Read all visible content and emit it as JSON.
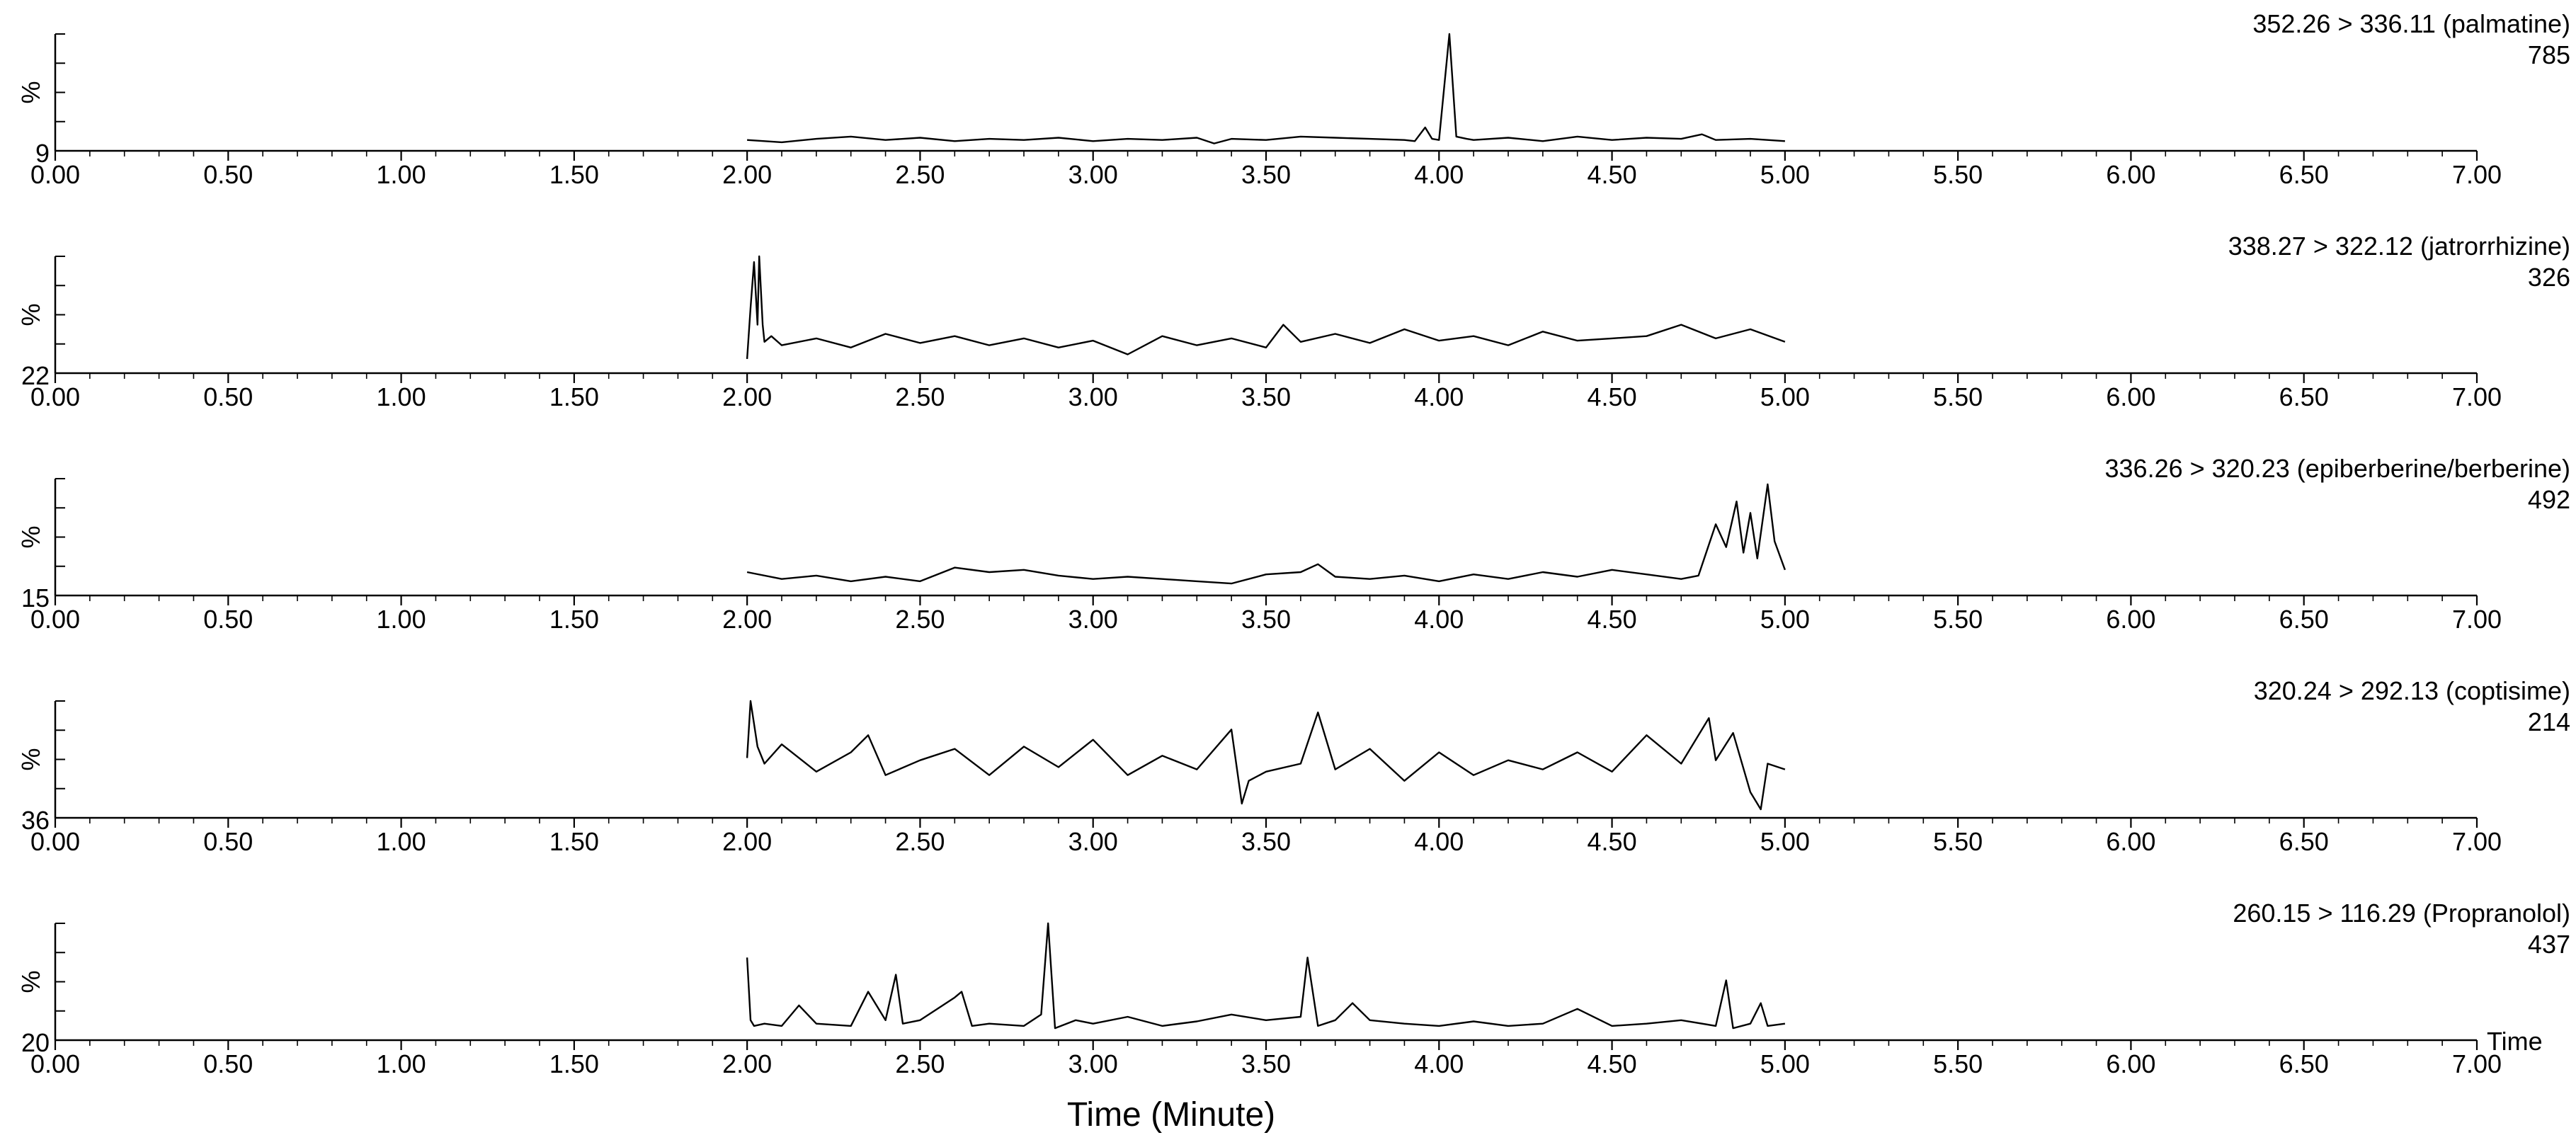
{
  "chart_data": {
    "type": "line",
    "xlabel": "Time (Minute)",
    "time_label": "Time",
    "x_range": [
      0,
      7
    ],
    "x_ticks": [
      "0.00",
      "0.50",
      "1.00",
      "1.50",
      "2.00",
      "2.50",
      "3.00",
      "3.50",
      "4.00",
      "4.50",
      "5.00",
      "5.50",
      "6.00",
      "6.50",
      "7.00"
    ],
    "y_axis_label": "%",
    "colors": {
      "line": "#000000",
      "axis": "#000000",
      "background": "#ffffff"
    },
    "panels": [
      {
        "transition": "352.26 > 336.11 (palmatine)",
        "max_intensity": "785",
        "baseline": "9",
        "x": [
          2.0,
          2.05,
          2.1,
          2.2,
          2.3,
          2.4,
          2.5,
          2.6,
          2.7,
          2.8,
          2.9,
          3.0,
          3.1,
          3.2,
          3.3,
          3.35,
          3.4,
          3.5,
          3.6,
          3.7,
          3.8,
          3.9,
          3.93,
          3.96,
          3.98,
          4.0,
          4.03,
          4.05,
          4.08,
          4.1,
          4.2,
          4.3,
          4.4,
          4.5,
          4.6,
          4.7,
          4.76,
          4.8,
          4.9,
          5.0
        ],
        "y": [
          7,
          6,
          5,
          8,
          10,
          7,
          9,
          6,
          8,
          7,
          9,
          6,
          8,
          7,
          9,
          4,
          8,
          7,
          10,
          9,
          8,
          7,
          6,
          18,
          8,
          7,
          100,
          10,
          8,
          7,
          9,
          6,
          10,
          7,
          9,
          8,
          12,
          7,
          8,
          6
        ]
      },
      {
        "transition": "338.27 > 322.12 (jatrorrhizine)",
        "max_intensity": "326",
        "baseline": "22",
        "x": [
          2.0,
          2.01,
          2.02,
          2.03,
          2.035,
          2.045,
          2.05,
          2.07,
          2.1,
          2.2,
          2.3,
          2.4,
          2.5,
          2.6,
          2.7,
          2.8,
          2.9,
          3.0,
          3.1,
          3.2,
          3.3,
          3.4,
          3.5,
          3.55,
          3.6,
          3.7,
          3.8,
          3.9,
          4.0,
          4.1,
          4.2,
          4.3,
          4.4,
          4.5,
          4.6,
          4.7,
          4.8,
          4.9,
          5.0
        ],
        "y": [
          10,
          55,
          95,
          40,
          100,
          40,
          25,
          30,
          22,
          28,
          20,
          32,
          24,
          30,
          22,
          28,
          20,
          26,
          14,
          30,
          22,
          28,
          20,
          40,
          25,
          32,
          24,
          36,
          26,
          30,
          22,
          34,
          26,
          28,
          30,
          40,
          28,
          36,
          25
        ]
      },
      {
        "transition": "336.26 > 320.23 (epiberberine/berberine)",
        "max_intensity": "492",
        "baseline": "15",
        "x": [
          2.0,
          2.1,
          2.2,
          2.3,
          2.4,
          2.5,
          2.6,
          2.7,
          2.8,
          2.9,
          3.0,
          3.1,
          3.2,
          3.3,
          3.4,
          3.5,
          3.6,
          3.65,
          3.7,
          3.8,
          3.9,
          4.0,
          4.1,
          4.2,
          4.3,
          4.4,
          4.5,
          4.6,
          4.7,
          4.75,
          4.8,
          4.83,
          4.86,
          4.88,
          4.9,
          4.92,
          4.95,
          4.97,
          5.0
        ],
        "y": [
          18,
          12,
          15,
          10,
          14,
          10,
          22,
          18,
          20,
          15,
          12,
          14,
          12,
          10,
          8,
          16,
          18,
          25,
          14,
          12,
          15,
          10,
          16,
          12,
          18,
          14,
          20,
          16,
          12,
          15,
          60,
          40,
          80,
          35,
          70,
          30,
          95,
          45,
          20
        ]
      },
      {
        "transition": "320.24 > 292.13 (coptisime)",
        "max_intensity": "214",
        "baseline": "36",
        "x": [
          2.0,
          2.01,
          2.03,
          2.05,
          2.1,
          2.2,
          2.3,
          2.35,
          2.4,
          2.5,
          2.6,
          2.7,
          2.8,
          2.9,
          3.0,
          3.1,
          3.2,
          3.3,
          3.4,
          3.43,
          3.45,
          3.5,
          3.6,
          3.65,
          3.7,
          3.8,
          3.9,
          4.0,
          4.1,
          4.2,
          4.3,
          4.4,
          4.5,
          4.6,
          4.7,
          4.78,
          4.8,
          4.85,
          4.9,
          4.93,
          4.95,
          5.0
        ],
        "y": [
          50,
          100,
          60,
          45,
          62,
          38,
          55,
          70,
          35,
          48,
          58,
          35,
          60,
          42,
          66,
          35,
          52,
          40,
          75,
          10,
          30,
          38,
          45,
          90,
          40,
          58,
          30,
          55,
          35,
          48,
          40,
          55,
          38,
          70,
          45,
          85,
          48,
          72,
          20,
          5,
          45,
          40
        ]
      },
      {
        "transition": "260.15 > 116.29 (Propranolol)",
        "max_intensity": "437",
        "baseline": "20",
        "x": [
          2.0,
          2.01,
          2.02,
          2.05,
          2.1,
          2.15,
          2.2,
          2.3,
          2.35,
          2.4,
          2.43,
          2.45,
          2.5,
          2.55,
          2.6,
          2.62,
          2.65,
          2.7,
          2.8,
          2.85,
          2.87,
          2.89,
          2.95,
          3.0,
          3.1,
          3.2,
          3.3,
          3.4,
          3.5,
          3.6,
          3.62,
          3.65,
          3.7,
          3.75,
          3.8,
          3.9,
          4.0,
          4.1,
          4.2,
          4.3,
          4.4,
          4.5,
          4.6,
          4.7,
          4.8,
          4.83,
          4.85,
          4.9,
          4.93,
          4.95,
          5.0
        ],
        "y": [
          70,
          15,
          10,
          12,
          10,
          28,
          12,
          10,
          40,
          15,
          55,
          12,
          15,
          25,
          35,
          40,
          10,
          12,
          10,
          20,
          100,
          8,
          15,
          12,
          18,
          10,
          14,
          20,
          15,
          18,
          70,
          10,
          15,
          30,
          15,
          12,
          10,
          14,
          10,
          12,
          25,
          10,
          12,
          15,
          10,
          50,
          8,
          12,
          30,
          10,
          12
        ]
      }
    ]
  }
}
